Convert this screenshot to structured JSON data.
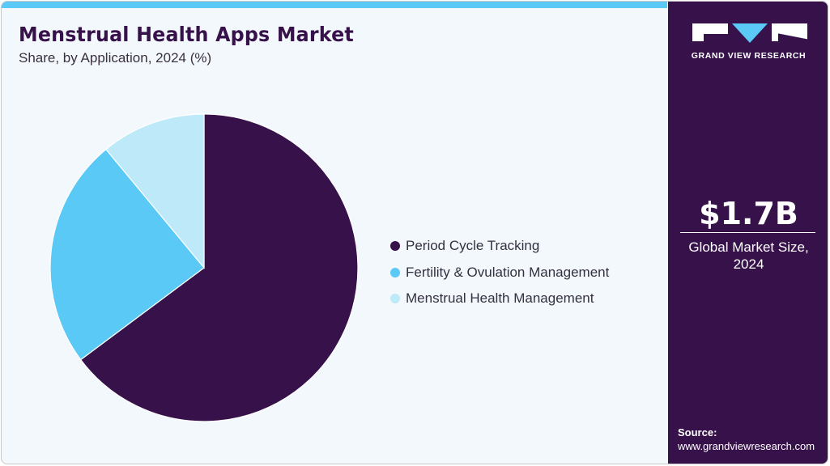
{
  "header": {
    "title": "Menstrual Health Apps Market",
    "subtitle": "Share, by Application, 2024 (%)"
  },
  "colors": {
    "accent_bar": "#5bc9f5",
    "sidebar_bg": "#37114a",
    "background": "#f3f8fc"
  },
  "legend": {
    "items": [
      {
        "label": "Period Cycle Tracking",
        "color": "#37114a"
      },
      {
        "label": "Fertility & Ovulation Management",
        "color": "#5bc9f5"
      },
      {
        "label": "Menstrual Health Management",
        "color": "#bde9f9"
      }
    ]
  },
  "sidebar": {
    "logo_text": "GRAND VIEW RESEARCH",
    "kpi_value": "$1.7B",
    "kpi_label_line1": "Global Market Size,",
    "kpi_label_line2": "2024",
    "source_label": "Source:",
    "source_url": "www.grandviewresearch.com"
  },
  "chart_data": {
    "type": "pie",
    "title": "Menstrual Health Apps Market",
    "subtitle": "Share, by Application, 2024 (%)",
    "categories": [
      "Period Cycle Tracking",
      "Fertility & Ovulation Management",
      "Menstrual Health Management"
    ],
    "values": [
      64.8,
      24.2,
      11.0
    ],
    "colors": [
      "#37114a",
      "#5bc9f5",
      "#bde9f9"
    ],
    "start_angle": "12 o'clock, clockwise",
    "legend_position": "right",
    "data_labels": false
  }
}
